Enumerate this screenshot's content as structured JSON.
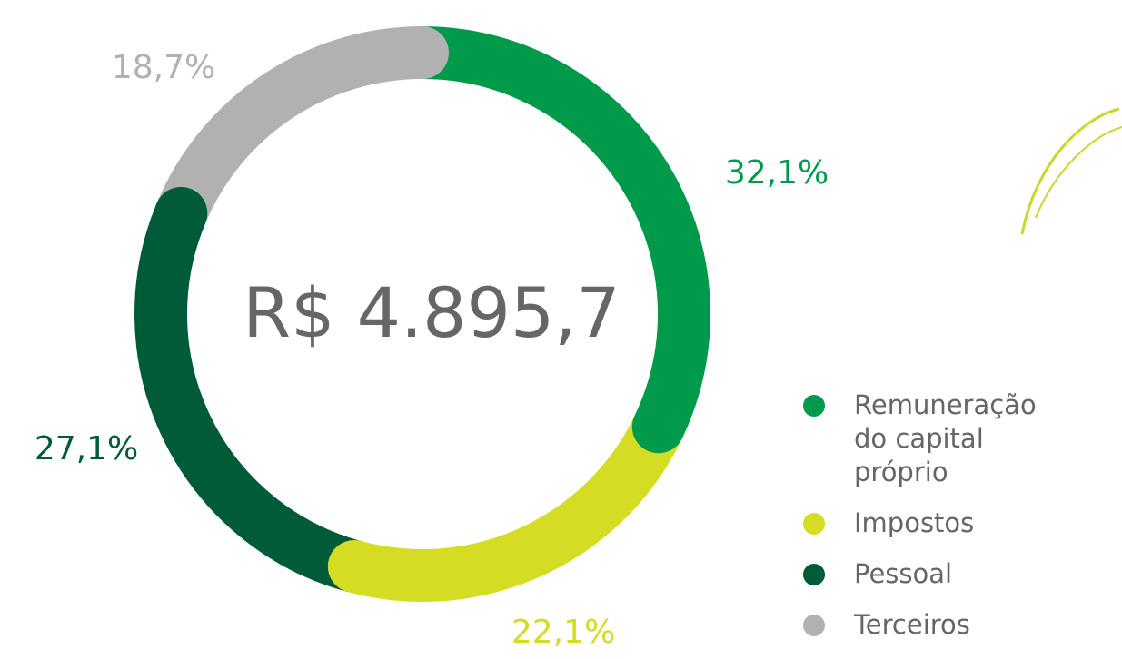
{
  "chart_data": {
    "type": "donut",
    "center_label": "R$ 4.895,7",
    "categories": [
      "Remuneração do capital próprio",
      "Impostos",
      "Pessoal",
      "Terceiros"
    ],
    "values": [
      32.1,
      22.1,
      27.1,
      18.7
    ],
    "value_labels": [
      "32,1%",
      "22,1%",
      "27,1%",
      "18,7%"
    ],
    "colors": [
      "#009a4a",
      "#d4dc23",
      "#005c38",
      "#b1b1b1"
    ]
  }
}
